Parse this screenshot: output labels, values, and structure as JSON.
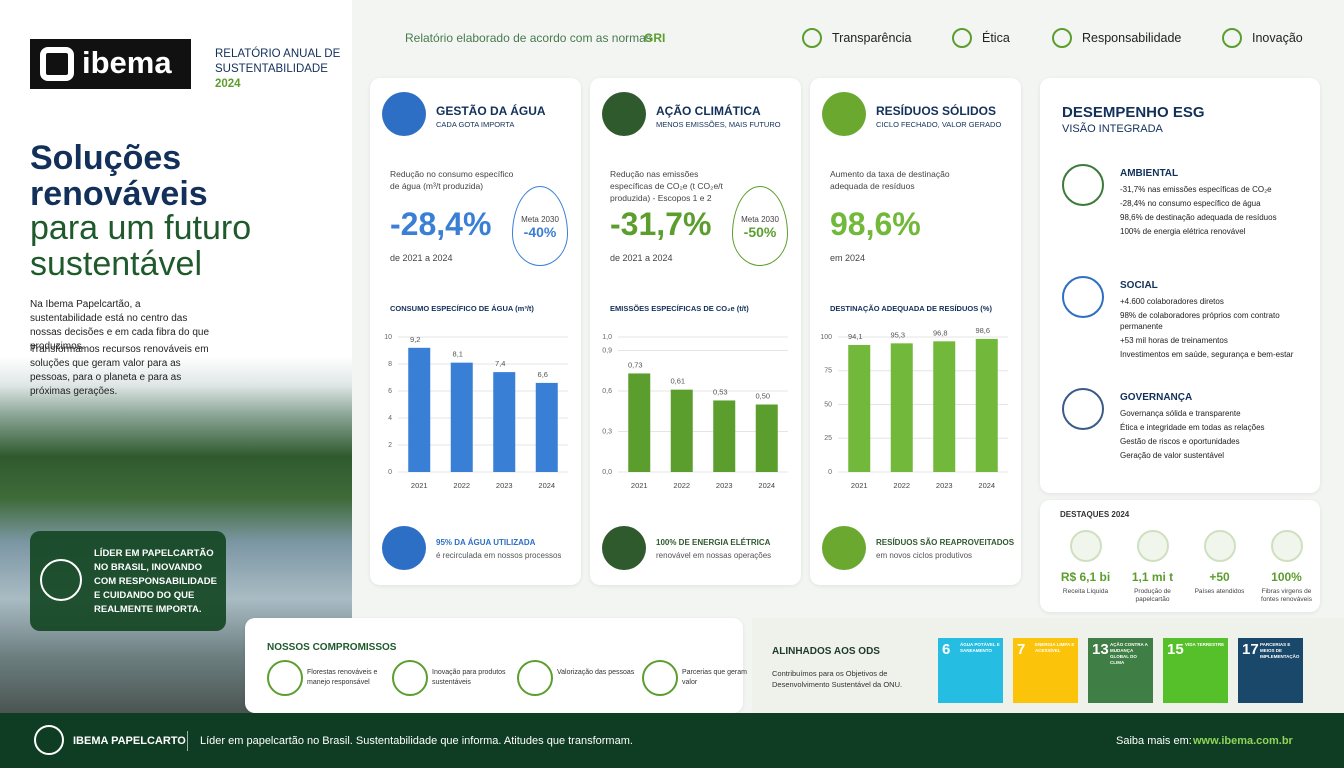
{
  "header": {
    "logo": "ibema",
    "report_line1": "RELATÓRIO ANUAL DE",
    "report_line2": "SUSTENTABILIDADE",
    "year": "2024"
  },
  "topbar": {
    "gri_text": "Relatório elaborado de acordo com as normas",
    "gri": "GRI",
    "values": [
      "Transparência",
      "Ética",
      "Responsabilidade",
      "Inovação"
    ]
  },
  "hero": {
    "title_bold": "Soluções renováveis",
    "title_light": "para um futuro sustentável",
    "paragraph": [
      "Na Ibema Papelcartão, a sustentabilidade está no centro das nossas decisões e em cada fibra do que produzimos.",
      "Transformamos recursos renováveis em soluções que geram valor para as pessoas, para o planeta e para as próximas gerações."
    ],
    "badge": "LÍDER EM PAPELCARTÃO NO BRASIL, INOVANDO COM RESPONSABILIDADE E CUIDANDO DO QUE REALMENTE IMPORTA."
  },
  "cards": [
    {
      "title": "GESTÃO DA ÁGUA",
      "subtitle": "CADA GOTA IMPORTA",
      "kpi_label": "Redução no consumo específico de água (m³/t produzida)",
      "kpi": "-28,4%",
      "period": "de 2021 a 2024",
      "target_label": "Meta 2030",
      "target": "-40%",
      "footer_bold": "95% DA ÁGUA UTILIZADA",
      "footer_text": "é recirculada em nossos processos"
    },
    {
      "title": "AÇÃO CLIMÁTICA",
      "subtitle": "MENOS EMISSÕES, MAIS FUTURO",
      "kpi_label": "Redução nas emissões específicas de CO₂e (t CO₂e/t produzida) - Escopos 1 e 2",
      "kpi": "-31,7%",
      "period": "de 2021 a 2024",
      "target_label": "Meta 2030",
      "target": "-50%",
      "footer_bold": "100% DE ENERGIA ELÉTRICA",
      "footer_text": "renovável em nossas operações"
    },
    {
      "title": "RESÍDUOS SÓLIDOS",
      "subtitle": "CICLO FECHADO, VALOR GERADO",
      "kpi_label": "Aumento da taxa de destinação adequada de resíduos",
      "kpi": "98,6%",
      "period": "em 2024",
      "footer_bold": "RESÍDUOS SÃO REAPROVEITADOS",
      "footer_text": "em novos ciclos produtivos"
    }
  ],
  "chart_data": [
    {
      "type": "bar",
      "title": "CONSUMO ESPECÍFICO DE ÁGUA (m³/t)",
      "categories": [
        "2021",
        "2022",
        "2023",
        "2024"
      ],
      "values": [
        9.2,
        8.1,
        7.4,
        6.6
      ],
      "value_labels": [
        "9,2",
        "8,1",
        "7,4",
        "6,6"
      ],
      "color": "#3a7fd6",
      "ylim": [
        0,
        10
      ],
      "yticks": [
        0,
        2,
        4,
        6,
        8,
        10
      ],
      "grid": true
    },
    {
      "type": "bar",
      "title": "EMISSÕES ESPECÍFICAS DE CO₂e (t/t)",
      "categories": [
        "2021",
        "2022",
        "2023",
        "2024"
      ],
      "values": [
        0.73,
        0.61,
        0.53,
        0.5
      ],
      "value_labels": [
        "0,73",
        "0,61",
        "0,53",
        "0,50"
      ],
      "color": "#5c9e2e",
      "ylim": [
        0,
        1.0
      ],
      "yticks": [
        {
          "value": 0,
          "label": "0,0"
        },
        {
          "value": 0.3,
          "label": "0,3"
        },
        {
          "value": 0.6,
          "label": "0,6"
        },
        {
          "value": 0.9,
          "label": "0,9"
        },
        {
          "value": 1.0,
          "label": "1,0"
        }
      ],
      "grid": true
    },
    {
      "type": "bar",
      "title": "DESTINAÇÃO ADEQUADA DE RESÍDUOS (%)",
      "categories": [
        "2021",
        "2022",
        "2023",
        "2024"
      ],
      "values": [
        94.1,
        95.3,
        96.8,
        98.6
      ],
      "value_labels": [
        "94,1",
        "95,3",
        "96,8",
        "98,6"
      ],
      "color": "#72b83a",
      "ylim": [
        0,
        100
      ],
      "yticks": [
        0,
        25,
        50,
        75,
        100
      ],
      "grid": true
    }
  ],
  "esg": {
    "title": "DESEMPENHO ESG",
    "subtitle": "VISÃO INTEGRADA",
    "sections": [
      {
        "title": "AMBIENTAL",
        "items": [
          "-31,7% nas emissões específicas de CO₂e",
          "-28,4% no consumo específico de água",
          "98,6% de destinação adequada de resíduos",
          "100% de energia elétrica renovável"
        ]
      },
      {
        "title": "SOCIAL",
        "items": [
          "+4.600 colaboradores diretos",
          "98% de colaboradores próprios com contrato permanente",
          "+53 mil horas de treinamentos",
          "Investimentos em saúde, segurança e bem-estar"
        ]
      },
      {
        "title": "GOVERNANÇA",
        "items": [
          "Governança sólida e transparente",
          "Ética e integridade em todas as relações",
          "Gestão de riscos e oportunidades",
          "Geração de valor sustentável"
        ]
      }
    ]
  },
  "highlights": {
    "title": "DESTAQUES 2024",
    "items": [
      {
        "value": "R$ 6,1 bi",
        "label": "Receita Líquida"
      },
      {
        "value": "1,1 mi t",
        "label": "Produção de papelcartão"
      },
      {
        "value": "+50",
        "label": "Países atendidos"
      },
      {
        "value": "100%",
        "label": "Fibras virgens de fontes renováveis"
      }
    ]
  },
  "commitments": {
    "title": "NOSSOS COMPROMISSOS",
    "items": [
      "Florestas renováveis e manejo responsável",
      "Inovação para produtos sustentáveis",
      "Valorização das pessoas",
      "Parcerias que geram valor"
    ]
  },
  "ods": {
    "title": "ALINHADOS AOS ODS",
    "text": "Contribuímos para os Objetivos de Desenvolvimento Sustentável da ONU.",
    "goals": [
      {
        "number": "6",
        "label": "ÁGUA POTÁVEL E SANEAMENTO"
      },
      {
        "number": "7",
        "label": "ENERGIA LIMPA E ACESSÍVEL"
      },
      {
        "number": "13",
        "label": "AÇÃO CONTRA A MUDANÇA GLOBAL DO CLIMA"
      },
      {
        "number": "15",
        "label": "VIDA TERRESTRE"
      },
      {
        "number": "17",
        "label": "PARCERIAS E MEIOS DE IMPLEMENTAÇÃO"
      }
    ]
  },
  "footer": {
    "brand": "IBEMA PAPELCARTO",
    "tagline": "Líder em papelcartão no Brasil. Sustentabilidade que informa. Atitudes que transformam.",
    "more": "Saiba mais em:",
    "url": "www.ibema.com.br"
  }
}
